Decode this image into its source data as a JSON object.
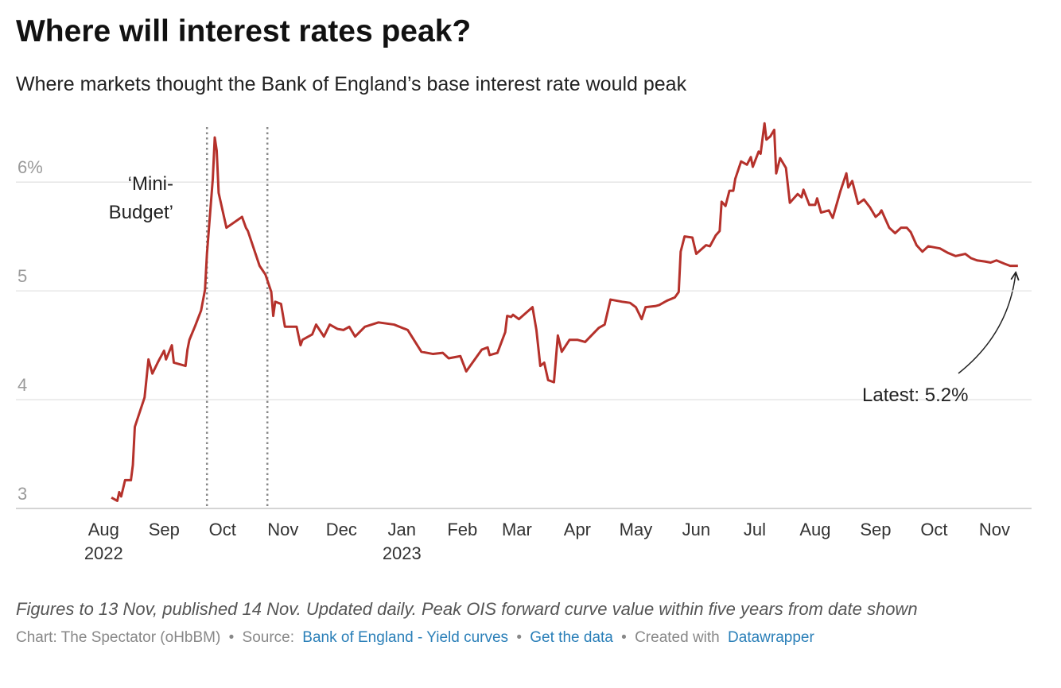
{
  "chart_data": {
    "type": "line",
    "title": "Where will interest rates peak?",
    "subtitle": "Where markets thought the Bank of England’s base interest rate would peak",
    "color": "#b5312b",
    "x": [
      "2022-08-05",
      "2022-08-08",
      "2022-08-09",
      "2022-08-10",
      "2022-08-12",
      "2022-08-15",
      "2022-08-16",
      "2022-08-17",
      "2022-08-22",
      "2022-08-24",
      "2022-08-26",
      "2022-08-29",
      "2022-09-01",
      "2022-09-02",
      "2022-09-05",
      "2022-09-06",
      "2022-09-12",
      "2022-09-13",
      "2022-09-14",
      "2022-09-17",
      "2022-09-20",
      "2022-09-22",
      "2022-09-23",
      "2022-09-26",
      "2022-09-27",
      "2022-09-28",
      "2022-09-29",
      "2022-10-03",
      "2022-10-11",
      "2022-10-13",
      "2022-10-14",
      "2022-10-20",
      "2022-10-23",
      "2022-10-26",
      "2022-10-27",
      "2022-10-28",
      "2022-10-31",
      "2022-11-02",
      "2022-11-08",
      "2022-11-10",
      "2022-11-11",
      "2022-11-16",
      "2022-11-18",
      "2022-11-22",
      "2022-11-25",
      "2022-11-29",
      "2022-12-02",
      "2022-12-05",
      "2022-12-08",
      "2022-12-13",
      "2022-12-20",
      "2022-12-28",
      "2023-01-04",
      "2023-01-11",
      "2023-01-17",
      "2023-01-22",
      "2023-01-25",
      "2023-01-31",
      "2023-02-03",
      "2023-02-11",
      "2023-02-14",
      "2023-02-15",
      "2023-02-19",
      "2023-02-23",
      "2023-02-24",
      "2023-02-26",
      "2023-02-27",
      "2023-03-02",
      "2023-03-09",
      "2023-03-11",
      "2023-03-13",
      "2023-03-15",
      "2023-03-17",
      "2023-03-20",
      "2023-03-22",
      "2023-03-24",
      "2023-03-28",
      "2023-04-01",
      "2023-04-05",
      "2023-04-12",
      "2023-04-15",
      "2023-04-18",
      "2023-04-24",
      "2023-04-28",
      "2023-05-01",
      "2023-05-04",
      "2023-05-06",
      "2023-05-11",
      "2023-05-13",
      "2023-05-17",
      "2023-05-21",
      "2023-05-23",
      "2023-05-24",
      "2023-05-26",
      "2023-05-30",
      "2023-06-01",
      "2023-06-06",
      "2023-06-08",
      "2023-06-11",
      "2023-06-13",
      "2023-06-14",
      "2023-06-16",
      "2023-06-18",
      "2023-06-20",
      "2023-06-21",
      "2023-06-24",
      "2023-06-27",
      "2023-06-29",
      "2023-06-30",
      "2023-07-03",
      "2023-07-04",
      "2023-07-06",
      "2023-07-07",
      "2023-07-09",
      "2023-07-11",
      "2023-07-12",
      "2023-07-14",
      "2023-07-17",
      "2023-07-19",
      "2023-07-23",
      "2023-07-25",
      "2023-07-26",
      "2023-07-29",
      "2023-08-01",
      "2023-08-02",
      "2023-08-04",
      "2023-08-08",
      "2023-08-10",
      "2023-08-14",
      "2023-08-17",
      "2023-08-18",
      "2023-08-20",
      "2023-08-23",
      "2023-08-26",
      "2023-08-29",
      "2023-09-01",
      "2023-09-03",
      "2023-09-04",
      "2023-09-08",
      "2023-09-11",
      "2023-09-14",
      "2023-09-17",
      "2023-09-19",
      "2023-09-22",
      "2023-09-25",
      "2023-09-28",
      "2023-10-04",
      "2023-10-08",
      "2023-10-12",
      "2023-10-17",
      "2023-10-20",
      "2023-10-23",
      "2023-10-27",
      "2023-10-30",
      "2023-11-02",
      "2023-11-06",
      "2023-11-09",
      "2023-11-13"
    ],
    "values": [
      3.1,
      3.07,
      3.15,
      3.11,
      3.26,
      3.26,
      3.4,
      3.75,
      4.02,
      4.37,
      4.24,
      4.35,
      4.45,
      4.37,
      4.5,
      4.34,
      4.31,
      4.46,
      4.55,
      4.68,
      4.82,
      5.01,
      5.34,
      6.03,
      6.41,
      6.29,
      5.9,
      5.58,
      5.68,
      5.58,
      5.55,
      5.23,
      5.15,
      4.99,
      4.77,
      4.9,
      4.88,
      4.67,
      4.67,
      4.5,
      4.55,
      4.6,
      4.69,
      4.58,
      4.69,
      4.65,
      4.64,
      4.67,
      4.58,
      4.67,
      4.71,
      4.69,
      4.64,
      4.44,
      4.42,
      4.43,
      4.38,
      4.4,
      4.26,
      4.46,
      4.48,
      4.41,
      4.43,
      4.62,
      4.77,
      4.76,
      4.78,
      4.74,
      4.85,
      4.64,
      4.31,
      4.34,
      4.18,
      4.16,
      4.59,
      4.44,
      4.55,
      4.55,
      4.53,
      4.66,
      4.69,
      4.92,
      4.9,
      4.89,
      4.85,
      4.74,
      4.85,
      4.86,
      4.87,
      4.91,
      4.94,
      4.99,
      5.36,
      5.5,
      5.49,
      5.34,
      5.42,
      5.41,
      5.51,
      5.55,
      5.82,
      5.78,
      5.92,
      5.92,
      6.03,
      6.19,
      6.16,
      6.23,
      6.14,
      6.28,
      6.26,
      6.54,
      6.39,
      6.42,
      6.48,
      6.08,
      6.22,
      6.13,
      5.81,
      5.89,
      5.86,
      5.93,
      5.79,
      5.79,
      5.85,
      5.72,
      5.74,
      5.67,
      5.92,
      6.08,
      5.95,
      6.01,
      5.8,
      5.84,
      5.77,
      5.68,
      5.71,
      5.74,
      5.58,
      5.53,
      5.58,
      5.58,
      5.54,
      5.42,
      5.36,
      5.41,
      5.39,
      5.35,
      5.32,
      5.34,
      5.3,
      5.28,
      5.27,
      5.26,
      5.28,
      5.25,
      5.23,
      5.23
    ],
    "xlim": [
      "2022-06-17",
      "2023-11-20"
    ],
    "xticks": [
      {
        "value": "2022-08-01",
        "label": "Aug 2022"
      },
      {
        "value": "2022-09-01",
        "label": "Sep"
      },
      {
        "value": "2022-10-01",
        "label": "Oct"
      },
      {
        "value": "2022-11-01",
        "label": "Nov"
      },
      {
        "value": "2022-12-01",
        "label": "Dec"
      },
      {
        "value": "2023-01-01",
        "label": "Jan 2023"
      },
      {
        "value": "2023-02-01",
        "label": "Feb"
      },
      {
        "value": "2023-03-01",
        "label": "Mar"
      },
      {
        "value": "2023-04-01",
        "label": "Apr"
      },
      {
        "value": "2023-05-01",
        "label": "May"
      },
      {
        "value": "2023-06-01",
        "label": "Jun"
      },
      {
        "value": "2023-07-01",
        "label": "Jul"
      },
      {
        "value": "2023-08-01",
        "label": "Aug"
      },
      {
        "value": "2023-09-01",
        "label": "Sep"
      },
      {
        "value": "2023-10-01",
        "label": "Oct"
      },
      {
        "value": "2023-11-01",
        "label": "Nov"
      }
    ],
    "ylim": [
      3,
      6.6
    ],
    "yticks": [
      3,
      4,
      5,
      {
        "value": 6,
        "label": "6%"
      }
    ],
    "grid": true,
    "reference_lines": [
      "2022-09-23",
      "2022-10-24"
    ],
    "annotations": [
      "‘Mini-Budget’",
      "Latest: 5.2%"
    ],
    "notes": "Figures to 13 Nov, published 14 Nov. Updated daily. Peak OIS forward curve value within five years from date shown",
    "byline": "Chart: The Spectator (oHbBM)",
    "separator": "•",
    "source_label": "Source:",
    "source": "Bank of England - Yield curves",
    "get_data": "Get the data",
    "credit_label": "Created with",
    "credit": "Datawrapper"
  }
}
